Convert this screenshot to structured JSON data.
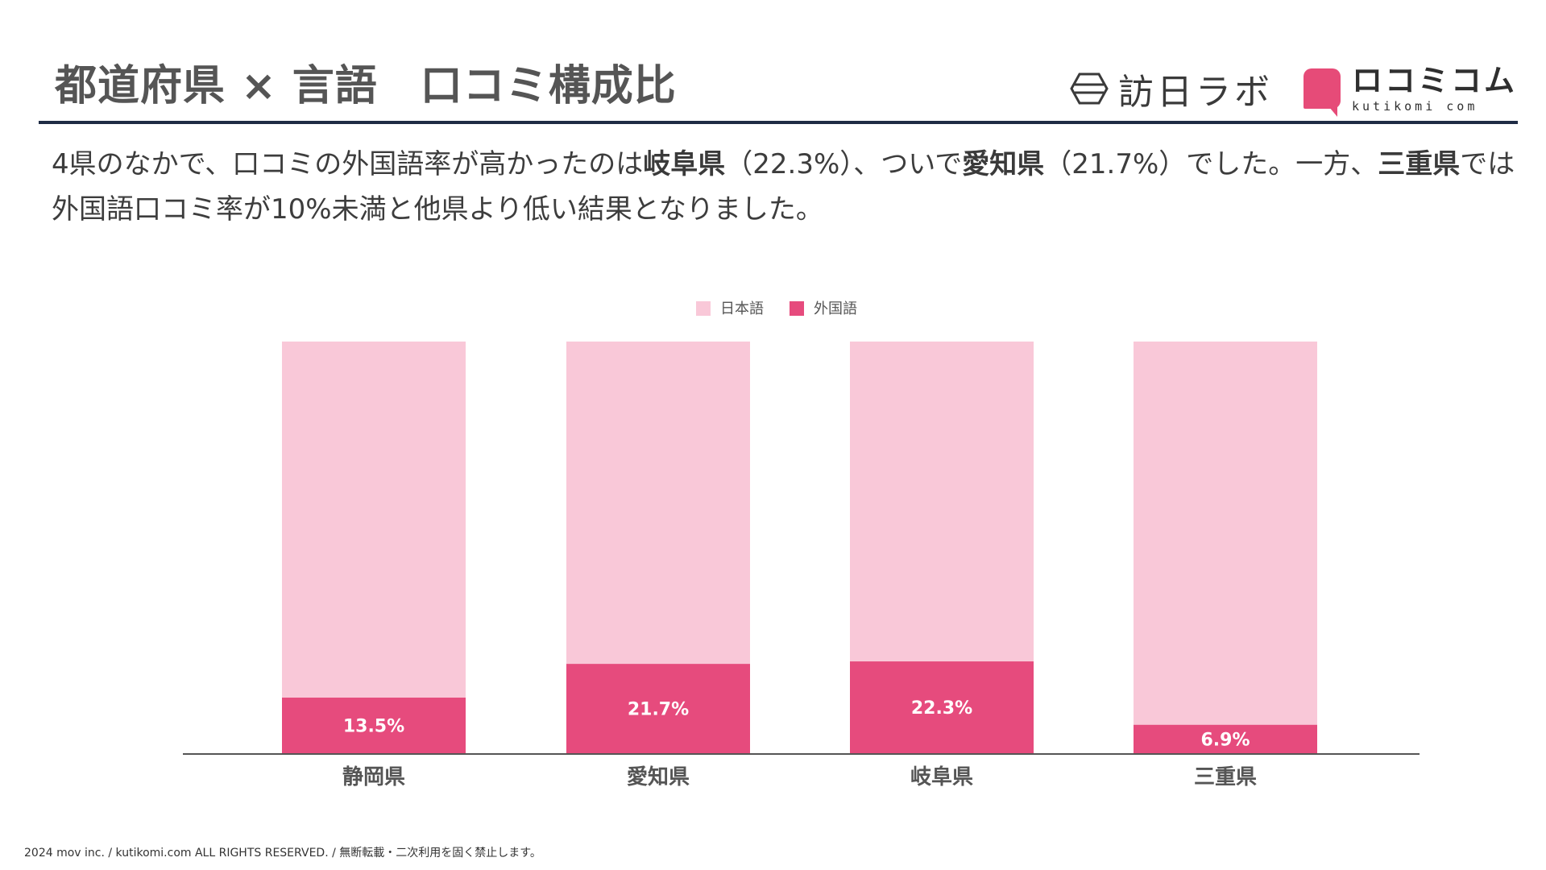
{
  "header": {
    "title": "都道府県 × 言語　口コミ構成比",
    "logo_houjin": "訪日ラボ",
    "logo_kutikomi_main": "ロコミコム",
    "logo_kutikomi_sub": "kutikomi com"
  },
  "description": {
    "p1": "4県のなかで、口コミの外国語率が高かったのは",
    "b1": "岐阜県",
    "p2": "（22.3%）、ついで",
    "b2": "愛知県",
    "p3": "（21.7%）でした。一方、",
    "b3": "三重県",
    "p4": "では外国語口コミ率が10%未満と他県より低い結果となりました。"
  },
  "colors": {
    "japanese": "#f9c8d8",
    "foreign": "#e64b7d",
    "axis": "#555555"
  },
  "chart_data": {
    "type": "bar",
    "stacked": true,
    "normalized": true,
    "categories": [
      "静岡県",
      "愛知県",
      "岐阜県",
      "三重県"
    ],
    "series": [
      {
        "name": "日本語",
        "values": [
          86.5,
          78.3,
          77.7,
          93.1
        ]
      },
      {
        "name": "外国語",
        "values": [
          13.5,
          21.7,
          22.3,
          6.9
        ]
      }
    ],
    "data_labels": [
      "13.5%",
      "21.7%",
      "22.3%",
      "6.9%"
    ],
    "ylim": [
      0,
      100
    ],
    "legend_position": "top-center",
    "grid": false
  },
  "footer": {
    "text": "2024 mov inc. / kutikomi.com ALL RIGHTS RESERVED. / 無断転載・二次利用を固く禁止します。"
  }
}
